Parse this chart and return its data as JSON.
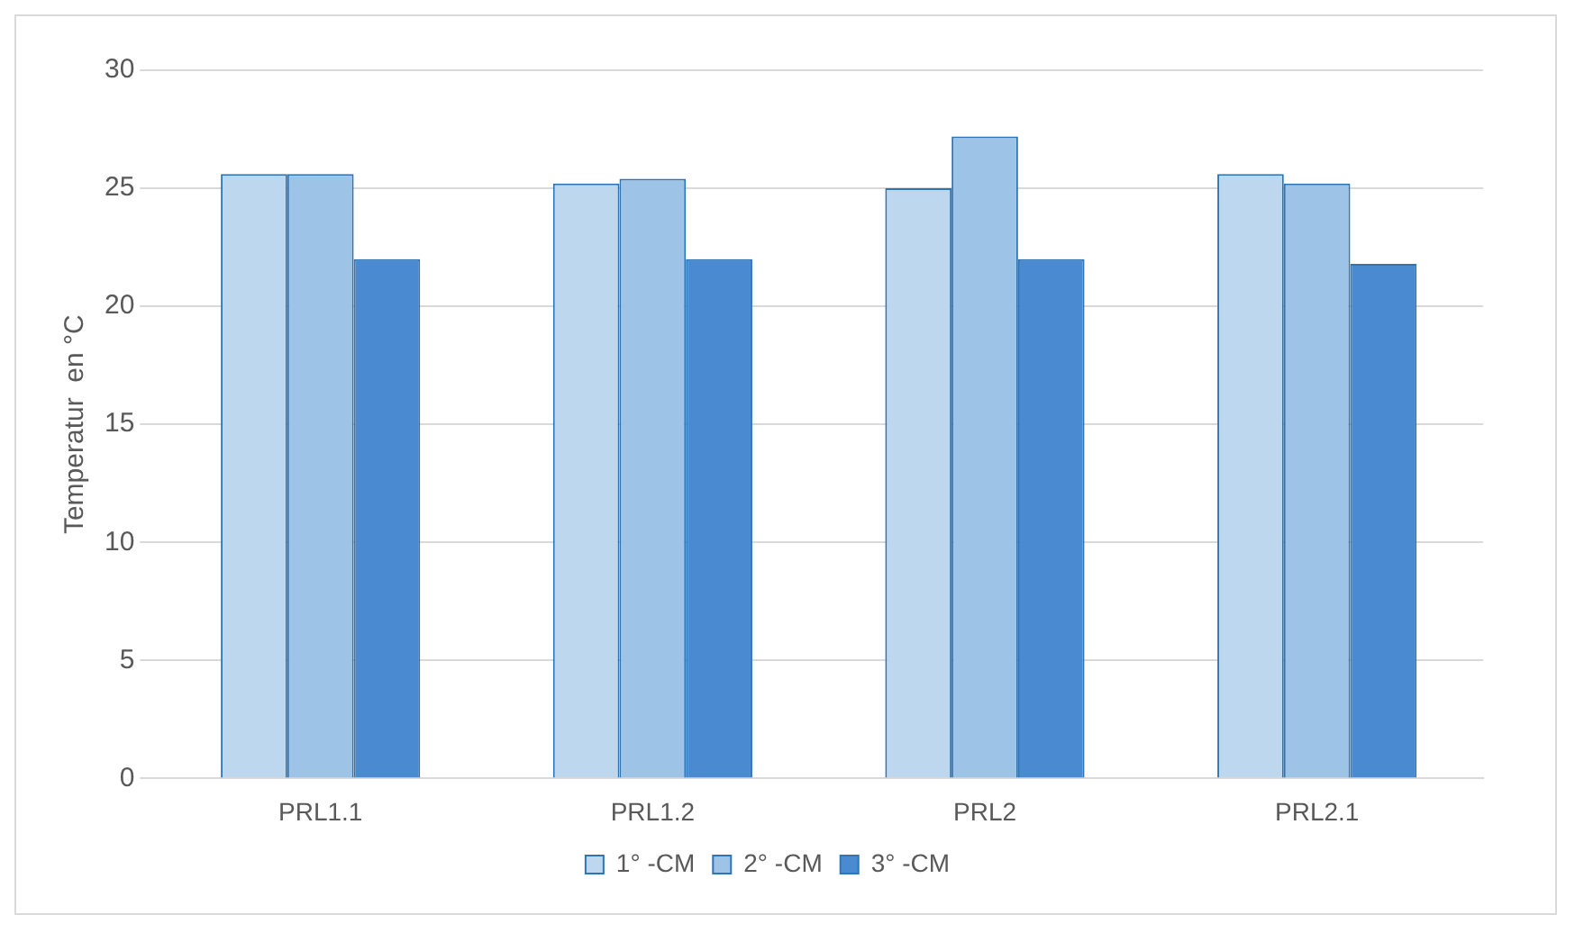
{
  "chart_data": {
    "type": "bar",
    "ylabel": "Temperatur  en °C",
    "categories": [
      "PRL1.1",
      "PRL1.2",
      "PRL2",
      "PRL2.1"
    ],
    "series": [
      {
        "name": "1° -CM",
        "color": "#bdd7ee",
        "values": [
          25.6,
          25.2,
          25,
          25.6
        ]
      },
      {
        "name": "2° -CM",
        "color": "#9dc3e6",
        "values": [
          25.6,
          25.4,
          27.2,
          25.2
        ]
      },
      {
        "name": "3° -CM",
        "color": "#4a8ad0",
        "values": [
          22,
          22,
          22,
          21.8
        ]
      }
    ],
    "ylim": [
      0,
      30
    ],
    "yticks": [
      0,
      5,
      10,
      15,
      20,
      25,
      30
    ],
    "grid": "y",
    "legend": "bottom"
  }
}
